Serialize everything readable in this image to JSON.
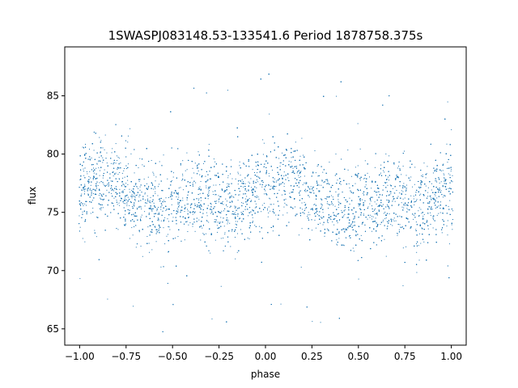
{
  "chart_data": {
    "type": "scatter",
    "title": "1SWASPJ083148.53-133541.6 Period 1878758.375s",
    "xlabel": "phase",
    "ylabel": "flux",
    "xlim": [
      -1.08,
      1.08
    ],
    "ylim": [
      63.6,
      89.2
    ],
    "xticks": [
      -1.0,
      -0.75,
      -0.5,
      -0.25,
      0.0,
      0.25,
      0.5,
      0.75,
      1.0
    ],
    "xtick_labels": [
      "−1.00",
      "−0.75",
      "−0.50",
      "−0.25",
      "0.00",
      "0.25",
      "0.50",
      "0.75",
      "1.00"
    ],
    "yticks": [
      65,
      70,
      75,
      80,
      85
    ],
    "ytick_labels": [
      "65",
      "70",
      "75",
      "80",
      "85"
    ],
    "grid": false,
    "legend": "none",
    "point_color": "#1f77b4",
    "series": [
      {
        "points_summary": "dense band of ~15000 points, phase-folded light curve repeated over [-1,1]",
        "x": [
          -1.0,
          -0.95,
          -0.9,
          -0.85,
          -0.8,
          -0.75,
          -0.7,
          -0.65,
          -0.6,
          -0.55,
          -0.5,
          -0.45,
          -0.4,
          -0.35,
          -0.3,
          -0.25,
          -0.2,
          -0.15,
          -0.1,
          -0.05,
          0.0,
          0.05,
          0.1,
          0.15,
          0.2,
          0.25,
          0.3,
          0.35,
          0.4,
          0.45,
          0.5,
          0.55,
          0.6,
          0.65,
          0.7,
          0.75,
          0.8,
          0.85,
          0.9,
          0.95,
          1.0
        ],
        "y_center": [
          77.0,
          77.5,
          77.8,
          77.6,
          77.2,
          76.6,
          76.0,
          75.6,
          75.4,
          75.4,
          75.6,
          75.9,
          76.1,
          76.2,
          76.1,
          75.8,
          75.6,
          75.8,
          76.3,
          76.9,
          77.0,
          77.5,
          77.8,
          77.6,
          77.2,
          76.6,
          76.0,
          75.6,
          75.4,
          75.4,
          75.6,
          75.9,
          76.1,
          76.2,
          76.1,
          75.8,
          75.6,
          75.8,
          76.3,
          76.9,
          77.0
        ],
        "y_spread": 2.2
      }
    ]
  }
}
